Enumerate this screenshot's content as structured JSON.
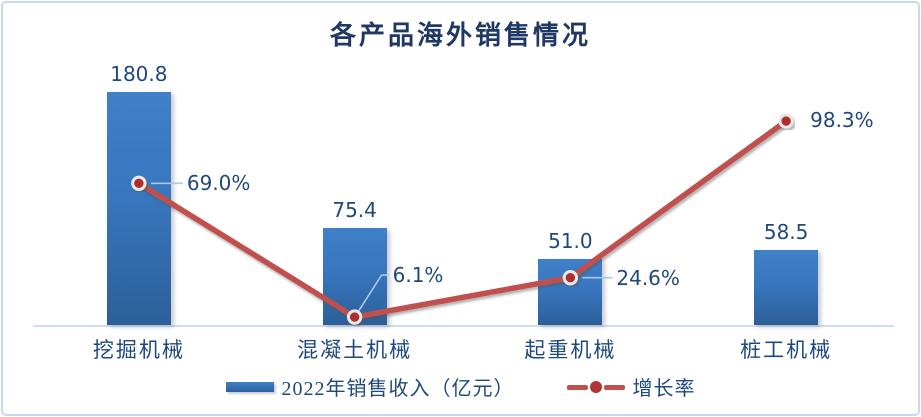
{
  "chart_data": {
    "type": "combo",
    "title": "各产品海外销售情况",
    "categories": [
      "挖掘机械",
      "混凝土机械",
      "起重机械",
      "桩工机械"
    ],
    "series": [
      {
        "name": "2022年销售收入（亿元）",
        "type": "bar",
        "values": [
          180.8,
          75.4,
          51.0,
          58.5
        ],
        "labels": [
          "180.8",
          "75.4",
          "51.0",
          "58.5"
        ],
        "color": "#3876BE",
        "axis": "left"
      },
      {
        "name": "增长率",
        "type": "line",
        "values": [
          69.0,
          6.1,
          24.6,
          98.3
        ],
        "labels": [
          "69.0%",
          "6.1%",
          "24.6%",
          "98.3%"
        ],
        "color": "#C0504D",
        "axis": "right"
      }
    ],
    "xlabel": "",
    "ylabel": "",
    "left_axis": {
      "visible": false,
      "min": 0,
      "max": 200
    },
    "right_axis": {
      "visible": false,
      "min": 0,
      "max": 110
    },
    "grid": false,
    "legend_position": "bottom",
    "colors": {
      "title_text": "#1F3864",
      "label_text": "#1F497D",
      "bar_fill_top": "#3F80C9",
      "bar_fill_bottom": "#2C5F99",
      "line_stroke": "#C0504D",
      "marker_fill": "#AE2F2C",
      "marker_ring": "#E9E9E9",
      "leader_line": "#AFC7E7",
      "axis_line": "#CEDDEF",
      "frame_border": "#C7D9F2"
    }
  }
}
